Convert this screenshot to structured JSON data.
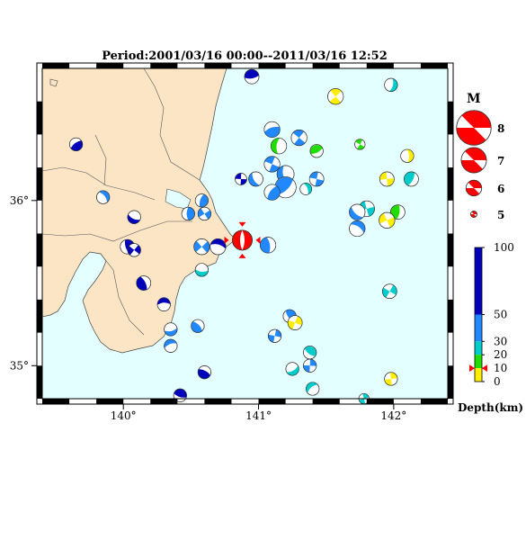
{
  "title": "Period:2001/03/16 00:00--2011/03/16 12:52",
  "axes": {
    "lon_ticks": [
      {
        "value": 140,
        "label": "140°"
      },
      {
        "value": 141,
        "label": "141°"
      },
      {
        "value": 142,
        "label": "142°"
      }
    ],
    "lat_ticks": [
      {
        "value": 36,
        "label": "36°"
      },
      {
        "value": 35,
        "label": "35°"
      }
    ],
    "lon_range": [
      139.4,
      142.4
    ],
    "lat_range": [
      34.8,
      36.8
    ]
  },
  "colors": {
    "sea": "#e4ffff",
    "land": "#fbe5c5",
    "frame": "#000000",
    "depth_0_10": "#ffee00",
    "depth_10_20": "#22dd00",
    "depth_20_30": "#00cccc",
    "depth_30_50": "#2288ff",
    "depth_50_100": "#0000bb",
    "mainshock": "#ff0000"
  },
  "magnitude_legend": {
    "title": "M",
    "items": [
      {
        "label": "8"
      },
      {
        "label": "7"
      },
      {
        "label": "6"
      },
      {
        "label": "5"
      }
    ]
  },
  "depth_legend": {
    "title": "Depth(km)",
    "labels": [
      "100",
      "50",
      "30",
      "20",
      "10",
      "0"
    ],
    "boundaries": [
      100,
      50,
      30,
      20,
      10,
      0
    ]
  },
  "mainshock": {
    "lon": 140.88,
    "lat": 35.76,
    "depth": 10,
    "mag": 6.6
  },
  "events": [
    {
      "lon": 140.95,
      "lat": 36.75,
      "d": 60,
      "m": 5.4
    },
    {
      "lon": 141.57,
      "lat": 36.63,
      "d": 5,
      "m": 5.5
    },
    {
      "lon": 141.98,
      "lat": 36.7,
      "d": 25,
      "m": 5.3
    },
    {
      "lon": 141.1,
      "lat": 36.43,
      "d": 40,
      "m": 5.5
    },
    {
      "lon": 141.3,
      "lat": 36.38,
      "d": 40,
      "m": 5.5
    },
    {
      "lon": 141.15,
      "lat": 36.33,
      "d": 15,
      "m": 5.5
    },
    {
      "lon": 141.43,
      "lat": 36.3,
      "d": 15,
      "m": 5.3
    },
    {
      "lon": 141.75,
      "lat": 36.34,
      "d": 15,
      "m": 5.1
    },
    {
      "lon": 142.1,
      "lat": 36.27,
      "d": 5,
      "m": 5.3
    },
    {
      "lon": 139.65,
      "lat": 36.34,
      "d": 70,
      "m": 5.3
    },
    {
      "lon": 141.1,
      "lat": 36.22,
      "d": 40,
      "m": 5.5
    },
    {
      "lon": 141.2,
      "lat": 36.16,
      "d": 40,
      "m": 5.6
    },
    {
      "lon": 141.2,
      "lat": 36.08,
      "d": 40,
      "m": 5.9
    },
    {
      "lon": 141.43,
      "lat": 36.13,
      "d": 40,
      "m": 5.4
    },
    {
      "lon": 141.35,
      "lat": 36.07,
      "d": 25,
      "m": 5.2
    },
    {
      "lon": 141.1,
      "lat": 36.05,
      "d": 40,
      "m": 5.5
    },
    {
      "lon": 140.87,
      "lat": 36.13,
      "d": 70,
      "m": 5.2
    },
    {
      "lon": 140.98,
      "lat": 36.13,
      "d": 40,
      "m": 5.4
    },
    {
      "lon": 142.13,
      "lat": 36.13,
      "d": 25,
      "m": 5.4
    },
    {
      "lon": 141.95,
      "lat": 36.13,
      "d": 5,
      "m": 5.4
    },
    {
      "lon": 139.85,
      "lat": 36.02,
      "d": 40,
      "m": 5.3
    },
    {
      "lon": 140.58,
      "lat": 36.0,
      "d": 40,
      "m": 5.3
    },
    {
      "lon": 141.8,
      "lat": 35.95,
      "d": 25,
      "m": 5.5
    },
    {
      "lon": 141.73,
      "lat": 35.93,
      "d": 40,
      "m": 5.5
    },
    {
      "lon": 142.03,
      "lat": 35.93,
      "d": 15,
      "m": 5.4
    },
    {
      "lon": 141.95,
      "lat": 35.88,
      "d": 5,
      "m": 5.5
    },
    {
      "lon": 141.73,
      "lat": 35.83,
      "d": 40,
      "m": 5.5
    },
    {
      "lon": 140.48,
      "lat": 35.92,
      "d": 40,
      "m": 5.3
    },
    {
      "lon": 140.6,
      "lat": 35.92,
      "d": 40,
      "m": 5.3
    },
    {
      "lon": 140.08,
      "lat": 35.9,
      "d": 70,
      "m": 5.3
    },
    {
      "lon": 141.07,
      "lat": 35.73,
      "d": 40,
      "m": 5.5
    },
    {
      "lon": 140.58,
      "lat": 35.72,
      "d": 40,
      "m": 5.5
    },
    {
      "lon": 140.7,
      "lat": 35.72,
      "d": 70,
      "m": 5.5
    },
    {
      "lon": 140.03,
      "lat": 35.72,
      "d": 70,
      "m": 5.4
    },
    {
      "lon": 140.08,
      "lat": 35.7,
      "d": 70,
      "m": 5.3
    },
    {
      "lon": 140.58,
      "lat": 35.58,
      "d": 25,
      "m": 5.3
    },
    {
      "lon": 140.15,
      "lat": 35.5,
      "d": 70,
      "m": 5.4
    },
    {
      "lon": 141.97,
      "lat": 35.45,
      "d": 25,
      "m": 5.4
    },
    {
      "lon": 140.3,
      "lat": 35.37,
      "d": 70,
      "m": 5.3
    },
    {
      "lon": 141.23,
      "lat": 35.3,
      "d": 40,
      "m": 5.3
    },
    {
      "lon": 141.27,
      "lat": 35.26,
      "d": 5,
      "m": 5.4
    },
    {
      "lon": 140.35,
      "lat": 35.22,
      "d": 40,
      "m": 5.3
    },
    {
      "lon": 140.55,
      "lat": 35.24,
      "d": 40,
      "m": 5.3
    },
    {
      "lon": 141.12,
      "lat": 35.18,
      "d": 40,
      "m": 5.3
    },
    {
      "lon": 140.35,
      "lat": 35.12,
      "d": 40,
      "m": 5.3
    },
    {
      "lon": 141.38,
      "lat": 35.08,
      "d": 25,
      "m": 5.3
    },
    {
      "lon": 141.38,
      "lat": 35.0,
      "d": 40,
      "m": 5.3
    },
    {
      "lon": 141.25,
      "lat": 34.98,
      "d": 25,
      "m": 5.3
    },
    {
      "lon": 140.6,
      "lat": 34.96,
      "d": 70,
      "m": 5.3
    },
    {
      "lon": 141.98,
      "lat": 34.92,
      "d": 5,
      "m": 5.3
    },
    {
      "lon": 141.4,
      "lat": 34.86,
      "d": 25,
      "m": 5.3
    },
    {
      "lon": 140.42,
      "lat": 34.82,
      "d": 70,
      "m": 5.3
    },
    {
      "lon": 141.78,
      "lat": 34.8,
      "d": 25,
      "m": 5.1
    }
  ]
}
